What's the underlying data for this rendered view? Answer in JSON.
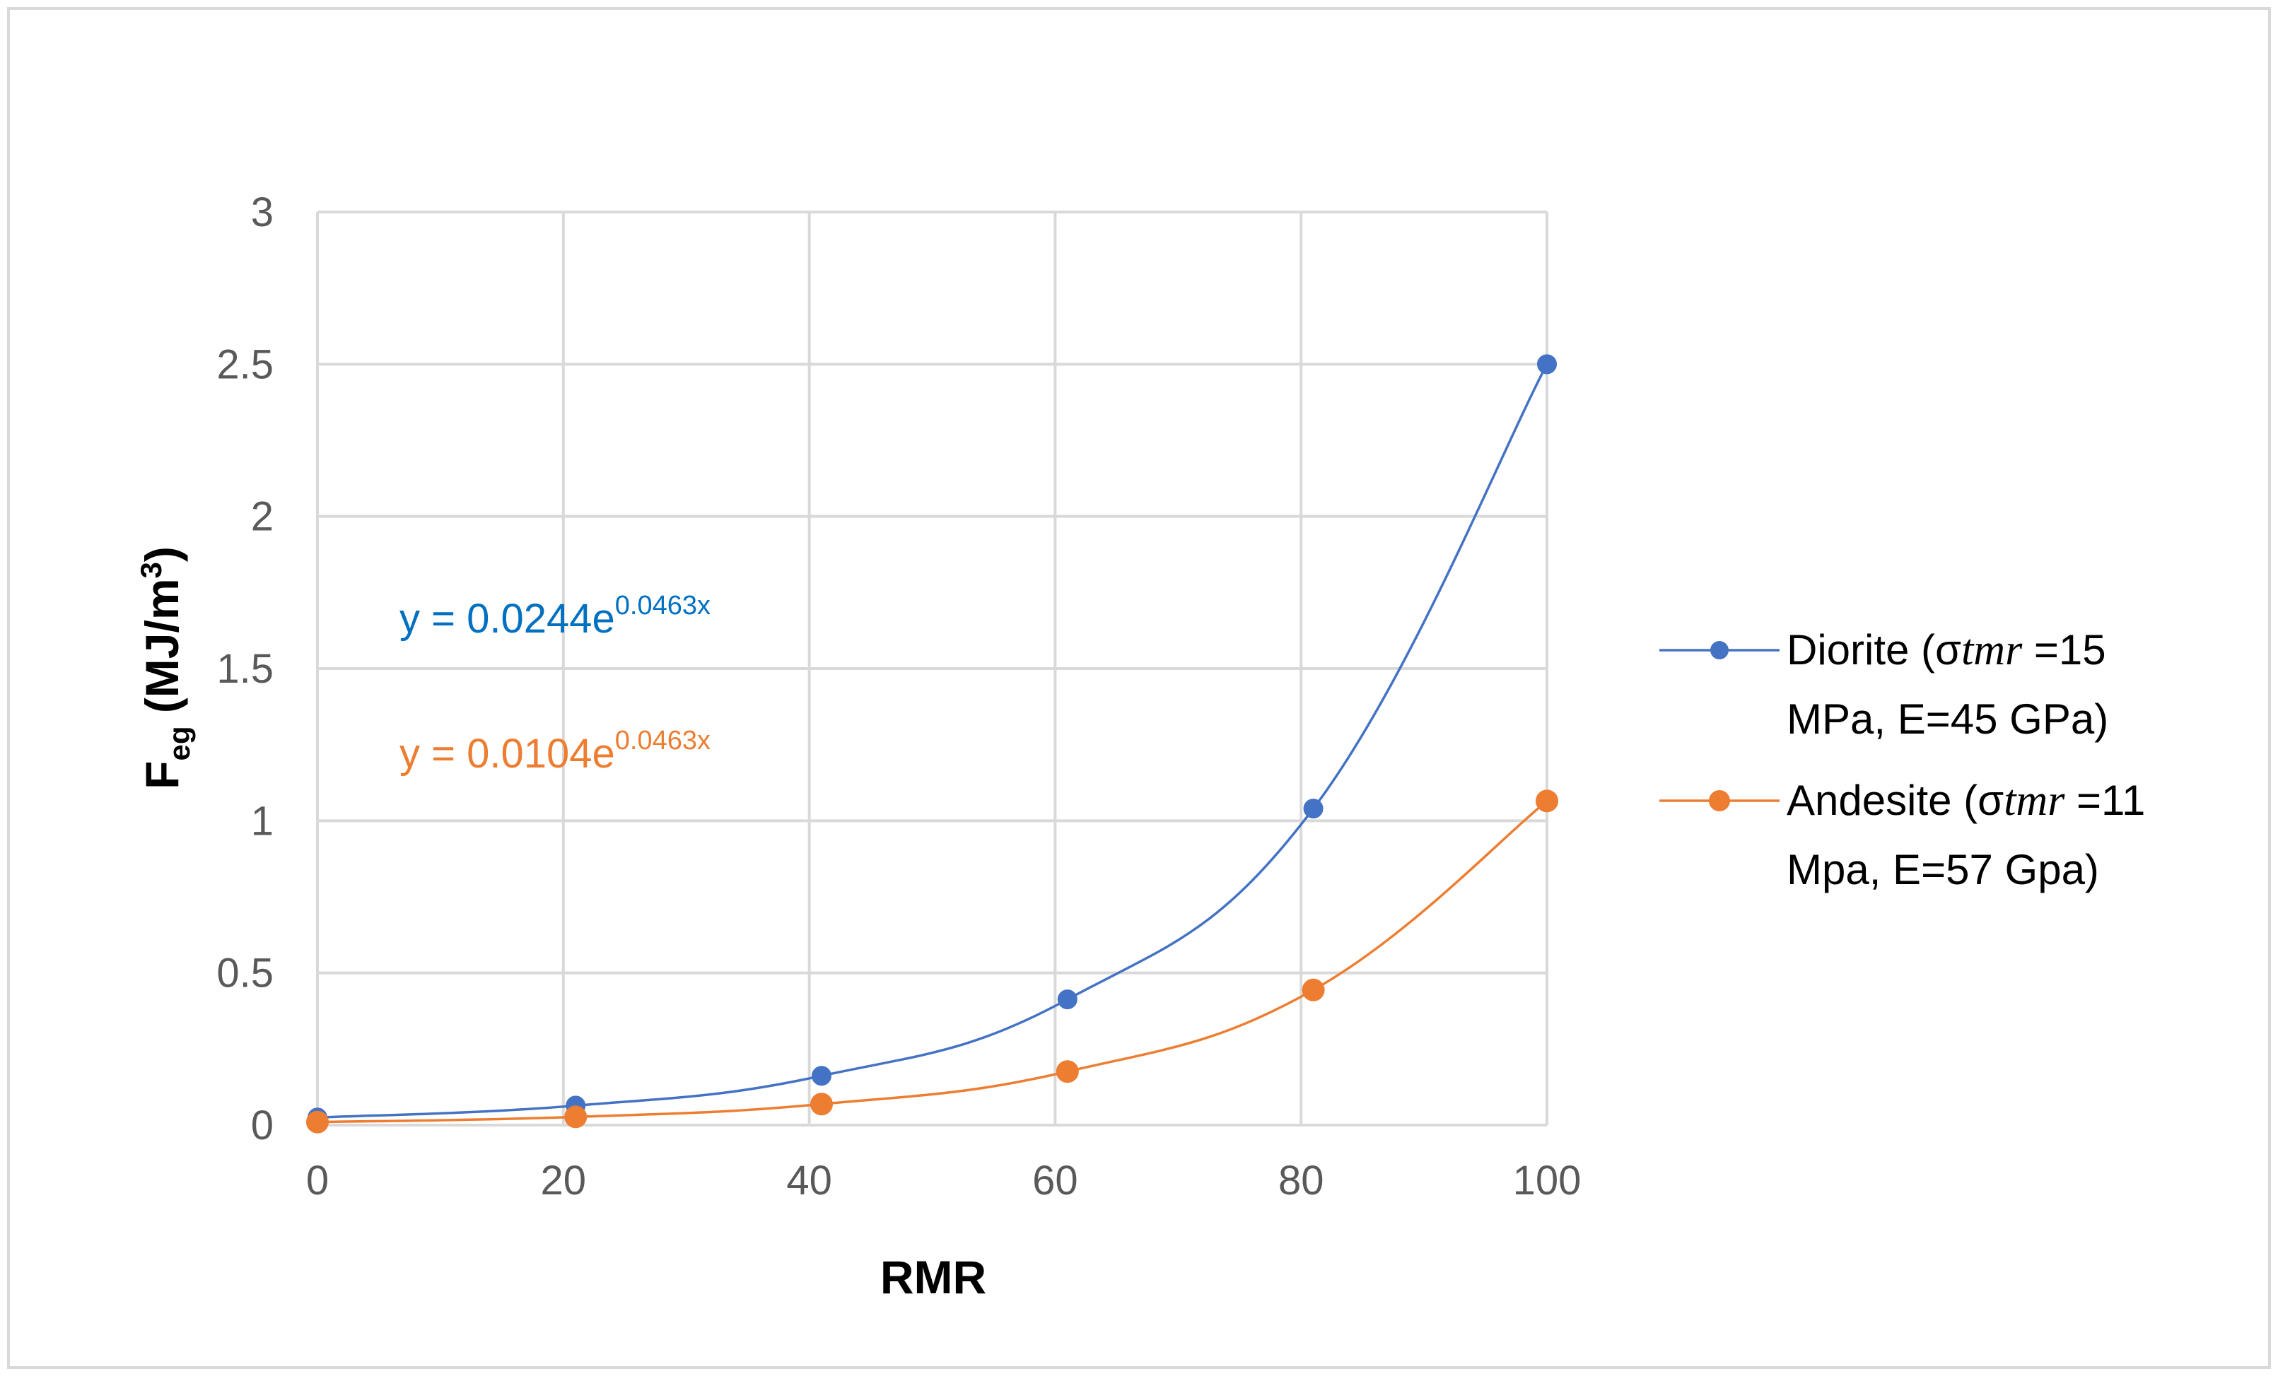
{
  "chart_data": {
    "type": "line",
    "title": "",
    "xlabel": "RMR",
    "ylabel": {
      "main": "F",
      "sub": "eg",
      "unit_pre": " (MJ/m",
      "unit_sup": "3",
      "unit_post": ")"
    },
    "xlim": [
      0,
      100
    ],
    "ylim": [
      0,
      3
    ],
    "xticks": [
      0,
      20,
      40,
      60,
      80,
      100
    ],
    "yticks": [
      {
        "value": 0,
        "label": "0"
      },
      {
        "value": 0.5,
        "label": "0.5"
      },
      {
        "value": 1,
        "label": "1"
      },
      {
        "value": 1.5,
        "label": "1.5"
      },
      {
        "value": 2,
        "label": "2"
      },
      {
        "value": 2.5,
        "label": "2.5"
      },
      {
        "value": 3,
        "label": "3"
      }
    ],
    "grid": true,
    "legend_position": "right",
    "series": [
      {
        "name": "Diorite",
        "color": "#4472c4",
        "legend_lines": [
          {
            "pre": "Diorite (σ",
            "italic": "tmr",
            "post": " =15"
          },
          {
            "pre": "MPa, E=45 GPa)",
            "italic": "",
            "post": ""
          }
        ],
        "x": [
          0,
          21,
          41,
          61,
          81,
          100
        ],
        "y": [
          0.025,
          0.064,
          0.162,
          0.413,
          1.04,
          2.5
        ]
      },
      {
        "name": "Andesite",
        "color": "#ed7d31",
        "legend_lines": [
          {
            "pre": "Andesite (σ",
            "italic": "tmr",
            "post": " =11"
          },
          {
            "pre": "Mpa, E=57 Gpa)",
            "italic": "",
            "post": ""
          }
        ],
        "x": [
          0,
          21,
          41,
          61,
          81,
          100
        ],
        "y": [
          0.01,
          0.027,
          0.069,
          0.176,
          0.444,
          1.065
        ]
      }
    ],
    "annotations": [
      {
        "series": "Diorite",
        "color": "#0070c0",
        "base": "y = 0.0244e",
        "exponent": "0.0463x"
      },
      {
        "series": "Andesite",
        "color": "#ed7d31",
        "base": "y = 0.0104e",
        "exponent": "0.0463x"
      }
    ]
  }
}
